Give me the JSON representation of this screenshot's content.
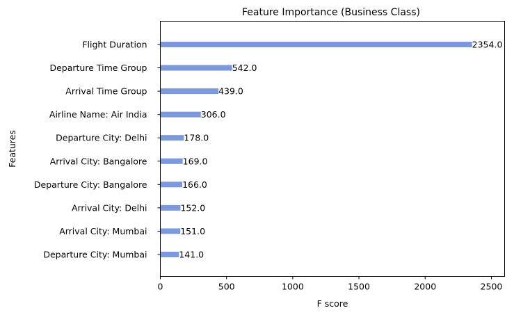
{
  "chart_data": {
    "type": "bar",
    "orientation": "horizontal",
    "title": "Feature Importance (Business Class)",
    "xlabel": "F score",
    "ylabel": "Features",
    "xlim": [
      0,
      2600
    ],
    "xticks": [
      0,
      500,
      1000,
      1500,
      2000,
      2500
    ],
    "categories": [
      "Flight Duration",
      "Departure Time Group",
      "Arrival Time Group",
      "Airline Name: Air India",
      "Departure City: Delhi",
      "Arrival City: Bangalore",
      "Departure City: Bangalore",
      "Arrival City: Delhi",
      "Arrival City: Mumbai",
      "Departure City: Mumbai"
    ],
    "values": [
      2354.0,
      542.0,
      439.0,
      306.0,
      178.0,
      169.0,
      166.0,
      152.0,
      151.0,
      141.0
    ],
    "value_labels": [
      "2354.0",
      "542.0",
      "439.0",
      "306.0",
      "178.0",
      "169.0",
      "166.0",
      "152.0",
      "151.0",
      "141.0"
    ],
    "bar_color": "#7b99dc",
    "grid": false,
    "legend": "none"
  }
}
